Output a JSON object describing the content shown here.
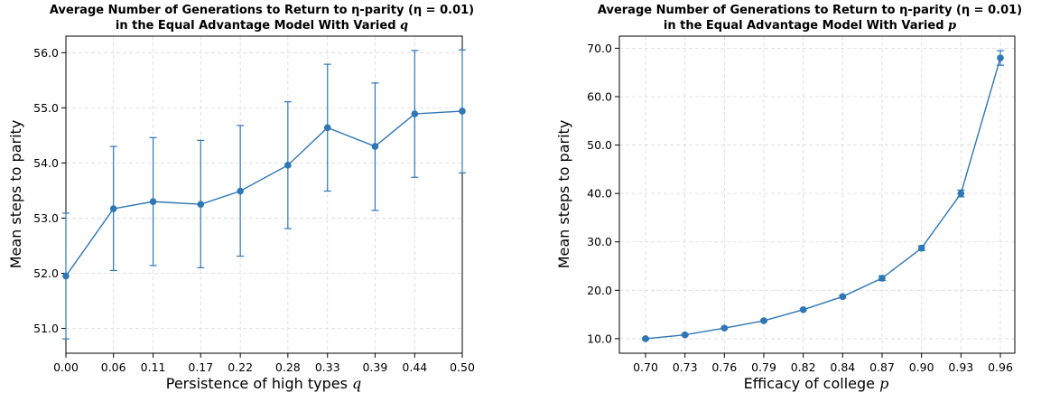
{
  "chart_data": [
    {
      "type": "line",
      "title_line1": "Average Number of Generations to Return to η-parity (η = 0.01)",
      "title_line2": "in the Equal Advantage Model With Varied",
      "title_var": "q",
      "xlabel": "Persistence of high types",
      "xlabel_var": "q",
      "ylabel": "Mean steps to parity",
      "x": [
        0.0,
        0.06,
        0.11,
        0.17,
        0.22,
        0.28,
        0.33,
        0.39,
        0.44,
        0.5
      ],
      "x_ticks": [
        "0.00",
        "0.06",
        "0.11",
        "0.17",
        "0.22",
        "0.28",
        "0.33",
        "0.39",
        "0.44",
        "0.50"
      ],
      "y": [
        51.95,
        53.17,
        53.3,
        53.25,
        53.49,
        53.96,
        54.64,
        54.3,
        54.89,
        54.94
      ],
      "err_low": [
        50.81,
        52.05,
        52.14,
        52.1,
        52.31,
        52.81,
        53.49,
        53.14,
        53.74,
        53.82
      ],
      "err_high": [
        53.09,
        54.3,
        54.46,
        54.41,
        54.68,
        55.11,
        55.79,
        55.45,
        56.04,
        56.05
      ],
      "y_ticks": [
        "51.0",
        "52.0",
        "53.0",
        "54.0",
        "55.0",
        "56.0"
      ],
      "ylim": [
        50.55,
        56.3
      ],
      "grid": true,
      "color": "#2e77b4"
    },
    {
      "type": "line",
      "title_line1": "Average Number of Generations to Return to η-parity (η = 0.01)",
      "title_line2": "in the Equal Advantage Model With Varied",
      "title_var": "p",
      "xlabel": "Efficacy of college",
      "xlabel_var": "p",
      "ylabel": "Mean steps to parity",
      "x": [
        0.7,
        0.73,
        0.76,
        0.79,
        0.82,
        0.84,
        0.87,
        0.9,
        0.93,
        0.96
      ],
      "x_ticks": [
        "0.70",
        "0.73",
        "0.76",
        "0.79",
        "0.82",
        "0.84",
        "0.87",
        "0.90",
        "0.93",
        "0.96"
      ],
      "y": [
        10.0,
        10.8,
        12.2,
        13.7,
        16.0,
        18.7,
        22.5,
        28.7,
        40.0,
        68.0
      ],
      "err_low": [
        9.8,
        10.6,
        12.0,
        13.5,
        15.8,
        18.4,
        22.0,
        28.2,
        39.3,
        66.5
      ],
      "err_high": [
        10.2,
        11.0,
        12.4,
        13.9,
        16.2,
        19.0,
        23.0,
        29.2,
        40.7,
        69.5
      ],
      "y_ticks": [
        "10.0",
        "20.0",
        "30.0",
        "40.0",
        "50.0",
        "60.0",
        "70.0"
      ],
      "ylim": [
        7.0,
        72.5
      ],
      "grid": true,
      "color": "#2e77b4"
    }
  ]
}
